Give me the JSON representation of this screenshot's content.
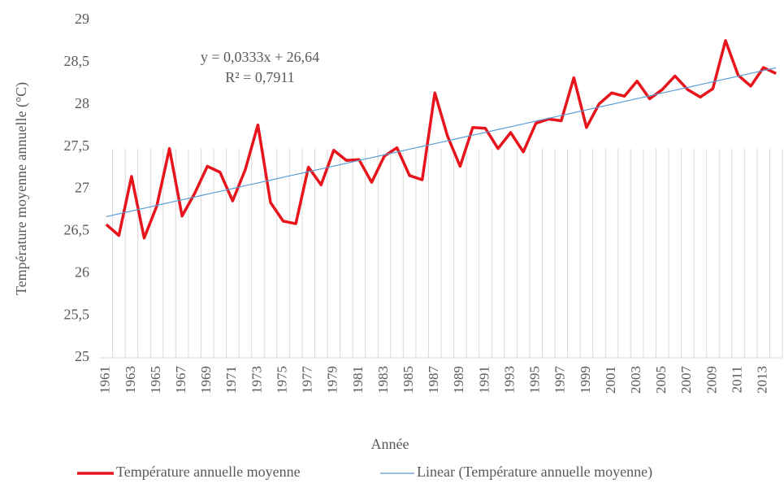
{
  "chart_data": {
    "type": "line",
    "y_label": "Température moyenne annuelle (°C)",
    "x_label": "Année",
    "annotations": [
      "y = 0,0333x + 26,64",
      "R² = 0,7911"
    ],
    "categories": [
      "1961",
      null,
      "1963",
      null,
      "1965",
      null,
      "1967",
      null,
      "1969",
      null,
      "1971",
      null,
      "1973",
      null,
      "1975",
      null,
      "1977",
      null,
      "1979",
      null,
      "1981",
      null,
      "1983",
      null,
      "1985",
      null,
      "1987",
      null,
      "1989",
      null,
      "1991",
      null,
      "1993",
      null,
      "1995",
      null,
      "1997",
      null,
      "1999",
      null,
      "2001",
      null,
      "2003",
      null,
      "2005",
      null,
      "2007",
      null,
      "2009",
      null,
      "2011",
      null,
      "2013",
      null
    ],
    "series": [
      {
        "name": "Température annuelle moyenne",
        "color": "#e8141b",
        "values": [
          26.58,
          26.45,
          27.15,
          26.42,
          26.8,
          27.48,
          26.68,
          26.95,
          27.27,
          27.2,
          26.86,
          27.23,
          27.76,
          26.84,
          26.62,
          26.59,
          27.26,
          27.05,
          27.46,
          27.34,
          27.35,
          27.08,
          27.39,
          27.49,
          27.16,
          27.11,
          28.14,
          27.63,
          27.27,
          27.73,
          27.72,
          27.48,
          27.67,
          27.44,
          27.78,
          27.83,
          27.81,
          28.32,
          27.73,
          28.01,
          28.14,
          28.1,
          28.28,
          28.07,
          28.18,
          28.34,
          28.18,
          28.09,
          28.19,
          28.76,
          28.35,
          28.22,
          28.44,
          28.37
        ]
      },
      {
        "name": "Linear (Température annuelle moyenne)",
        "color": "#5b9bd5",
        "values": [
          26.673,
          26.707,
          26.74,
          26.773,
          26.807,
          26.84,
          26.873,
          26.906,
          26.94,
          26.973,
          27.006,
          27.04,
          27.073,
          27.106,
          27.14,
          27.173,
          27.206,
          27.239,
          27.273,
          27.306,
          27.339,
          27.373,
          27.406,
          27.439,
          27.473,
          27.506,
          27.539,
          27.572,
          27.606,
          27.639,
          27.672,
          27.706,
          27.739,
          27.772,
          27.806,
          27.839,
          27.872,
          27.905,
          27.939,
          27.972,
          28.005,
          28.039,
          28.072,
          28.105,
          28.139,
          28.172,
          28.205,
          28.238,
          28.272,
          28.305,
          28.338,
          28.372,
          28.405,
          28.438
        ]
      }
    ],
    "ylim": [
      25,
      29
    ],
    "yticks": [
      25,
      {
        "value": 25.5,
        "label": "25,5"
      },
      26,
      {
        "value": 26.5,
        "label": "26,5"
      },
      27,
      {
        "value": 27.5,
        "label": "27,5"
      },
      28,
      {
        "value": 28.5,
        "label": "28,5"
      },
      29
    ],
    "legend": "bottom"
  }
}
